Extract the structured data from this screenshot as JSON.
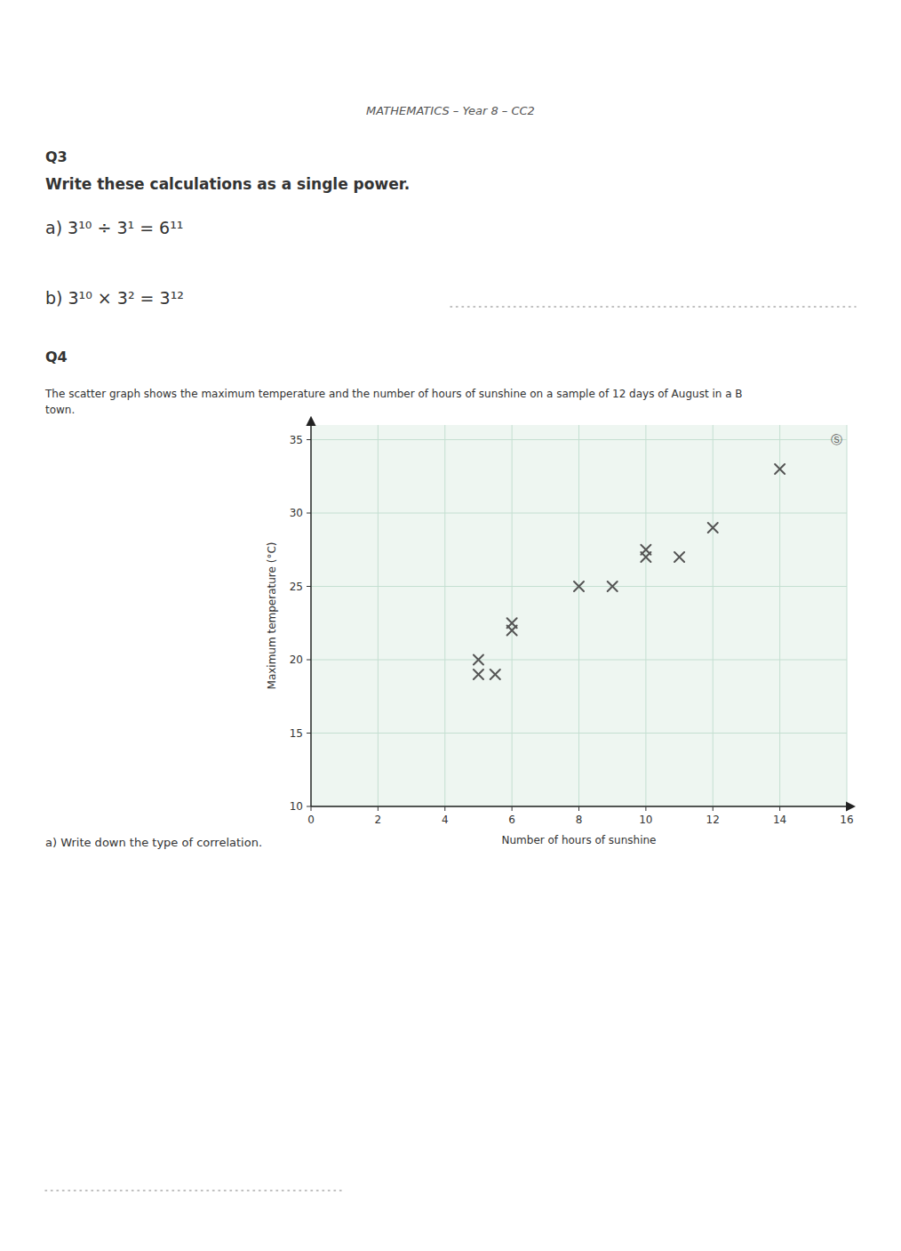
{
  "chart_data": {
    "type": "scatter",
    "title": "MATHEMATICS – Year 8 – CC2",
    "annotations": [
      "Q3",
      "Write these calculations as a single power.",
      "a)  3¹⁰ ÷ 3¹ = 6¹¹",
      "b)  3¹⁰ × 3² = 3¹²",
      "Q4",
      "The scatter graph shows the maximum temperature and the number of hours of sunshine on a sample of 12 days of August in a B",
      "town.",
      "Ⓢ",
      "a)  Write down the type of correlation."
    ],
    "xlabel": "Number of hours of sunshine",
    "ylabel": "Maximum temperature (°C)",
    "x": [
      5,
      5,
      5.5,
      6,
      6,
      8,
      9,
      10,
      10,
      11,
      12,
      14
    ],
    "values": [
      19,
      20,
      19,
      22,
      22.5,
      25,
      25,
      27,
      27.5,
      27,
      29,
      33
    ],
    "color": "#555555",
    "marker": "x",
    "xlim": [
      0,
      16
    ],
    "ylim": [
      10,
      36
    ],
    "xticks": [
      0,
      2,
      4,
      6,
      8,
      10,
      12,
      14,
      16
    ],
    "yticks": [
      10,
      15,
      20,
      25,
      30,
      35
    ],
    "grid": true
  }
}
